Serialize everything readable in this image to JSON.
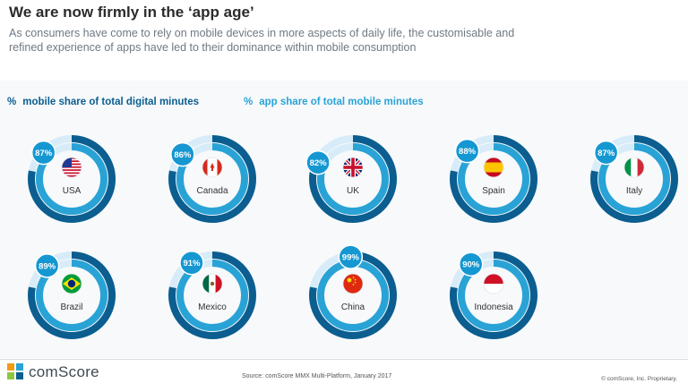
{
  "header": {
    "title": "We are now firmly in the ‘app age’",
    "subtitle": "As consumers have come to rely on mobile devices in more aspects of daily life, the customisable and refined experience of apps have led to their dominance within mobile consumption"
  },
  "legend": {
    "symbol": "%",
    "mobile_label": "mobile share of total digital minutes",
    "app_label": "app share of total mobile minutes"
  },
  "colors": {
    "mobile_ring": "#0b5e8f",
    "app_ring": "#29a3d6",
    "track": "#d7ecf8",
    "badge": "#1597d2"
  },
  "chart_data": {
    "type": "donut",
    "series": [
      {
        "name": "mobile share of total digital minutes"
      },
      {
        "name": "app share of total mobile minutes"
      }
    ],
    "categories": [
      "USA",
      "Canada",
      "UK",
      "Spain",
      "Italy",
      "Brazil",
      "Mexico",
      "China",
      "Indonesia"
    ],
    "countries": [
      {
        "name": "USA",
        "flag": "usa-flag",
        "app_share_label": "87%",
        "app_share": 87
      },
      {
        "name": "Canada",
        "flag": "canada-flag",
        "app_share_label": "86%",
        "app_share": 86
      },
      {
        "name": "UK",
        "flag": "uk-flag",
        "app_share_label": "82%",
        "app_share": 82
      },
      {
        "name": "Spain",
        "flag": "spain-flag",
        "app_share_label": "88%",
        "app_share": 88
      },
      {
        "name": "Italy",
        "flag": "italy-flag",
        "app_share_label": "87%",
        "app_share": 87
      },
      {
        "name": "Brazil",
        "flag": "brazil-flag",
        "app_share_label": "89%",
        "app_share": 89
      },
      {
        "name": "Mexico",
        "flag": "mexico-flag",
        "app_share_label": "91%",
        "app_share": 91
      },
      {
        "name": "China",
        "flag": "china-flag",
        "app_share_label": "99%",
        "app_share": 99
      },
      {
        "name": "Indonesia",
        "flag": "indonesia-flag",
        "app_share_label": "90%",
        "app_share": 90
      }
    ]
  },
  "footer": {
    "logo_text": "comScore",
    "source": "Source: comScore MMX Multi-Platform, January 2017",
    "copyright": "© comScore, Inc. Proprietary."
  }
}
